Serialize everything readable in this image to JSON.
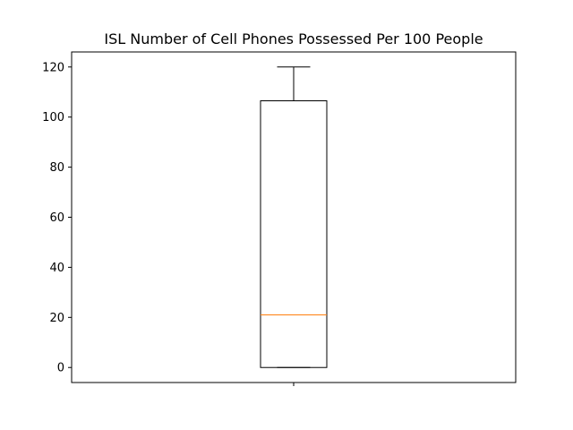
{
  "chart_data": {
    "type": "box",
    "title": "ISL Number of Cell Phones Possessed Per 100 People",
    "xlabel": "",
    "ylabel": "",
    "categories": [
      ""
    ],
    "ylim": [
      -6,
      126
    ],
    "yticks": [
      0,
      20,
      40,
      60,
      80,
      100,
      120
    ],
    "grid": false,
    "boxes": [
      {
        "whisker_low": 0,
        "q1": 0,
        "median": 21,
        "q3": 106.5,
        "whisker_high": 120,
        "outliers": []
      }
    ],
    "colors": {
      "box": "#000000",
      "median": "#ff7f0e"
    }
  }
}
